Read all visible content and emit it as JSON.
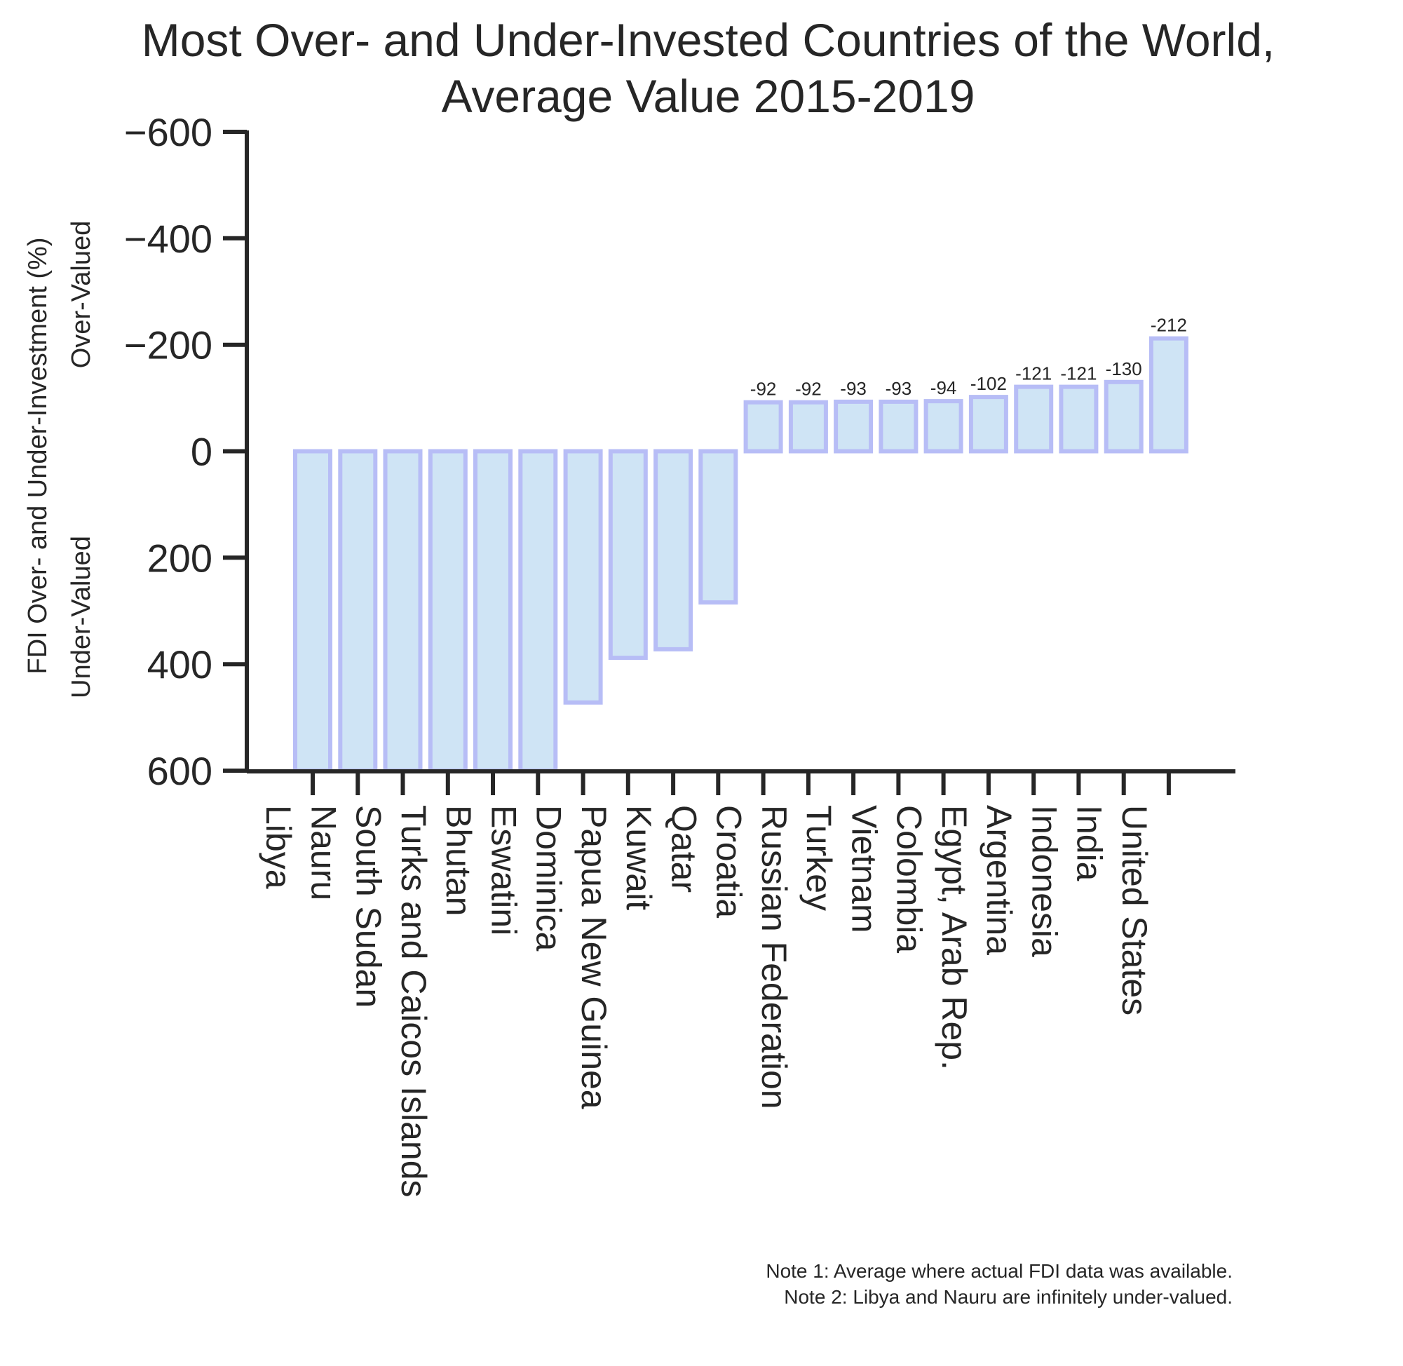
{
  "chart_data": {
    "type": "bar",
    "title": [
      "Most Over- and Under-Invested Countries of the World,",
      "Average Value 2015-2019"
    ],
    "ylabel": "FDI Over- and Under-Investment (%)",
    "ylabel_top": "Over-Valued",
    "ylabel_bottom": "Under-Valued",
    "y_axis_inverted": true,
    "ylim": [
      600,
      -600
    ],
    "yticks": [
      -600,
      -400,
      -200,
      0,
      200,
      400,
      600
    ],
    "ytick_labels": [
      "−600",
      "−400",
      "−200",
      "0",
      "200",
      "400",
      "600"
    ],
    "grid": false,
    "categories": [
      "Libya",
      "Nauru",
      "South Sudan",
      "Turks and Caicos Islands",
      "Bhutan",
      "Eswatini",
      "Dominica",
      "Papua New Guinea",
      "Kuwait",
      "Qatar",
      "Croatia",
      "Russian Federation",
      "Turkey",
      "Vietnam",
      "Colombia",
      "Egypt, Arab Rep.",
      "Argentina",
      "Indonesia",
      "India",
      "United States"
    ],
    "values": [
      600,
      600,
      600,
      600,
      600,
      600,
      472,
      388,
      372,
      284,
      -92,
      -92,
      -93,
      -93,
      -94,
      -102,
      -121,
      -121,
      -130,
      -212
    ],
    "data_labels": [
      null,
      null,
      null,
      null,
      null,
      null,
      null,
      null,
      null,
      null,
      "-92",
      "-92",
      "-93",
      "-93",
      "-94",
      "-102",
      "-121",
      "-121",
      "-130",
      "-212"
    ],
    "colors": {
      "bar_fill": "#cfe4f5",
      "bar_edge": "#b7bdf6",
      "axis": "#262626"
    },
    "notes": [
      "Note 1: Average where actual FDI data was available.",
      "Note 2: Libya and Nauru are infinitely under-valued."
    ]
  }
}
